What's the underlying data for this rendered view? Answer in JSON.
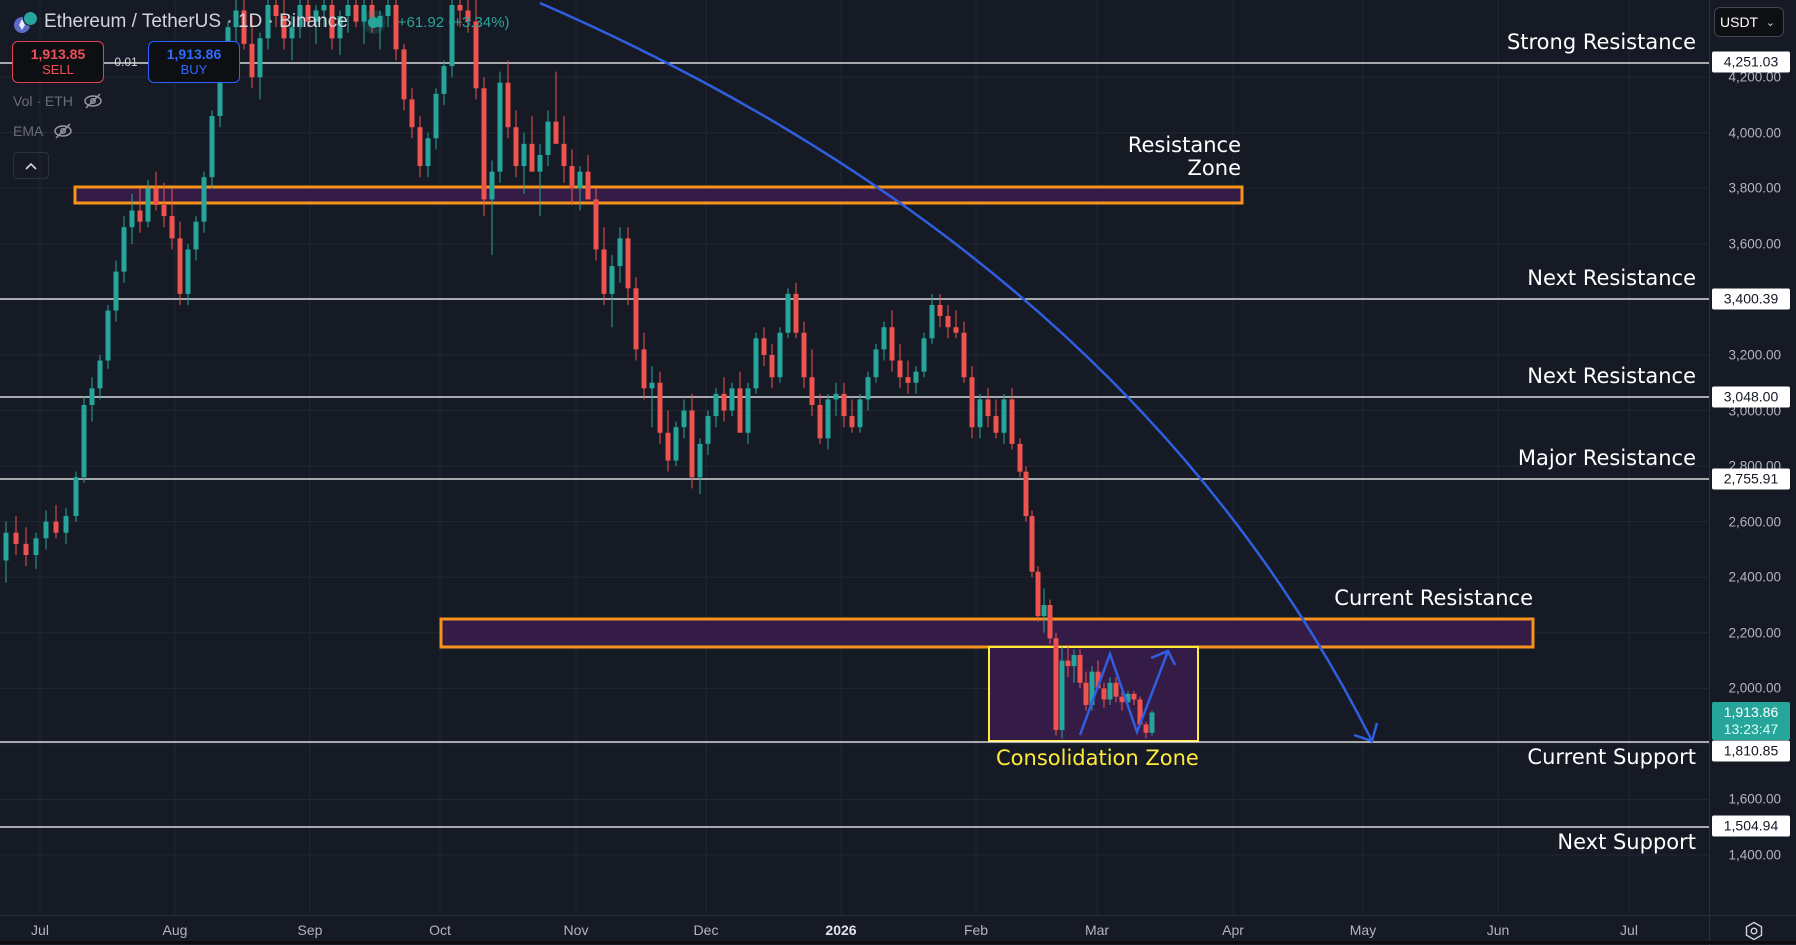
{
  "header": {
    "symbol_title": "Ethereum / TetherUS · 1D · Binance",
    "change": "+61.92 (+3.34%)",
    "sell_price": "1,913.85",
    "sell_label": "SELL",
    "spread": "0.01",
    "buy_price": "1,913.86",
    "buy_label": "BUY",
    "indicators": [
      {
        "label": "Vol · ETH",
        "visibility_icon": "eye-off-icon"
      },
      {
        "label": "EMA",
        "visibility_icon": "eye-off-icon"
      }
    ],
    "collapse_icon": "chevron-up-icon"
  },
  "price_axis": {
    "currency": "USDT",
    "ticks": [
      "4,200.00",
      "4,000.00",
      "3,800.00",
      "3,600.00",
      "3,200.00",
      "3,000.00",
      "2,800.00",
      "2,600.00",
      "2,400.00",
      "2,200.00",
      "2,000.00",
      "1,600.00",
      "1,400.00"
    ],
    "level_labels": [
      "4,251.03",
      "3,400.39",
      "3,048.00",
      "2,755.91",
      "1,810.85",
      "1,504.94"
    ],
    "last_price": "1,913.86",
    "countdown": "13:23:47"
  },
  "time_axis": {
    "labels": [
      "Jul",
      "Aug",
      "Sep",
      "Oct",
      "Nov",
      "Dec",
      "2026",
      "Feb",
      "Mar",
      "Apr",
      "May",
      "Jun",
      "Jul"
    ],
    "settings_icon": "gear-icon"
  },
  "annotations": {
    "strong_resistance": "Strong Resistance",
    "resistance_zone_line1": "Resistance",
    "resistance_zone_line2": "Zone",
    "next_resistance_1": "Next Resistance",
    "next_resistance_2": "Next Resistance",
    "major_resistance": "Major Resistance",
    "current_resistance": "Current Resistance",
    "consolidation_zone": "Consolidation Zone",
    "current_support": "Current Support",
    "next_support": "Next Support"
  },
  "colors": {
    "background": "#161a25",
    "up_candle": "#26a69a",
    "down_candle": "#ef5350",
    "zone_border": "#f7931a",
    "zone_fill": "#351c47",
    "consolidation_border": "#ffeb3b",
    "projection": "#2f5fe0",
    "level_line": "#ffffff"
  },
  "chart_data": {
    "type": "candlestick",
    "title": "Ethereum / TetherUS · 1D · Binance",
    "xlabel": "",
    "ylabel": "USDT",
    "ylim": [
      1240,
      4480
    ],
    "x_ticks": [
      "Jul",
      "Aug",
      "Sep",
      "Oct",
      "Nov",
      "Dec",
      "2026",
      "Feb",
      "Mar",
      "Apr",
      "May",
      "Jun",
      "Jul"
    ],
    "y_ticks": [
      1400,
      1600,
      1800,
      2000,
      2200,
      2400,
      2600,
      2800,
      3000,
      3200,
      3400,
      3600,
      3800,
      4000,
      4200
    ],
    "last_price": 1913.86,
    "horizontal_levels": [
      {
        "label": "Strong Resistance",
        "price": 4251.03
      },
      {
        "label": "Next Resistance",
        "price": 3400.39
      },
      {
        "label": "Next Resistance",
        "price": 3048.0
      },
      {
        "label": "Major Resistance",
        "price": 2755.91
      },
      {
        "label": "Current Support",
        "price": 1810.85
      },
      {
        "label": "Next Support",
        "price": 1504.94
      }
    ],
    "zones": [
      {
        "label": "Resistance Zone",
        "price_low": 3740,
        "price_high": 3800,
        "from": "Jul",
        "to": "Apr"
      },
      {
        "label": "Current Resistance",
        "price_low": 2150,
        "price_high": 2250,
        "from": "Oct",
        "to": "Jun"
      },
      {
        "label": "Consolidation Zone",
        "price_low": 1810,
        "price_high": 2150,
        "from": "Feb",
        "to": "Mar"
      }
    ],
    "projection": "Curved downtrend arrow from ~4,480 (Sep) to ~1,810 (May); zig-zag inside consolidation zone pointing up",
    "candles_xohlc": [
      [
        6,
        2460,
        2600,
        2380,
        2560
      ],
      [
        16,
        2560,
        2620,
        2480,
        2520
      ],
      [
        26,
        2520,
        2580,
        2440,
        2480
      ],
      [
        36,
        2480,
        2560,
        2430,
        2540
      ],
      [
        46,
        2540,
        2640,
        2500,
        2600
      ],
      [
        56,
        2600,
        2660,
        2540,
        2560
      ],
      [
        66,
        2560,
        2650,
        2520,
        2620
      ],
      [
        76,
        2620,
        2780,
        2600,
        2760
      ],
      [
        84,
        2760,
        3050,
        2740,
        3020
      ],
      [
        92,
        3020,
        3120,
        2960,
        3080
      ],
      [
        100,
        3080,
        3200,
        3040,
        3180
      ],
      [
        108,
        3180,
        3380,
        3150,
        3360
      ],
      [
        116,
        3360,
        3540,
        3320,
        3500
      ],
      [
        124,
        3500,
        3700,
        3460,
        3660
      ],
      [
        132,
        3660,
        3780,
        3600,
        3720
      ],
      [
        140,
        3720,
        3800,
        3640,
        3680
      ],
      [
        148,
        3680,
        3830,
        3660,
        3800
      ],
      [
        156,
        3800,
        3860,
        3720,
        3740
      ],
      [
        164,
        3740,
        3820,
        3660,
        3700
      ],
      [
        172,
        3700,
        3800,
        3580,
        3620
      ],
      [
        180,
        3620,
        3680,
        3380,
        3420
      ],
      [
        188,
        3420,
        3600,
        3380,
        3580
      ],
      [
        196,
        3580,
        3700,
        3540,
        3680
      ],
      [
        204,
        3680,
        3860,
        3640,
        3840
      ],
      [
        212,
        3840,
        4080,
        3800,
        4060
      ],
      [
        220,
        4060,
        4300,
        4020,
        4280
      ],
      [
        228,
        4280,
        4400,
        4200,
        4380
      ],
      [
        236,
        4380,
        4480,
        4300,
        4440
      ],
      [
        244,
        4440,
        4480,
        4300,
        4320
      ],
      [
        252,
        4320,
        4420,
        4160,
        4200
      ],
      [
        260,
        4200,
        4360,
        4120,
        4340
      ],
      [
        268,
        4340,
        4480,
        4300,
        4460
      ],
      [
        276,
        4460,
        4480,
        4380,
        4420
      ],
      [
        284,
        4420,
        4480,
        4300,
        4340
      ],
      [
        292,
        4340,
        4420,
        4260,
        4380
      ],
      [
        300,
        4380,
        4480,
        4340,
        4460
      ],
      [
        308,
        4460,
        4480,
        4380,
        4400
      ],
      [
        316,
        4400,
        4460,
        4320,
        4440
      ],
      [
        324,
        4440,
        4480,
        4380,
        4460
      ],
      [
        332,
        4460,
        4480,
        4300,
        4340
      ],
      [
        340,
        4340,
        4440,
        4280,
        4420
      ],
      [
        348,
        4420,
        4480,
        4360,
        4460
      ],
      [
        356,
        4460,
        4480,
        4380,
        4400
      ],
      [
        364,
        4400,
        4480,
        4320,
        4460
      ],
      [
        372,
        4460,
        4480,
        4360,
        4380
      ],
      [
        380,
        4380,
        4440,
        4300,
        4420
      ],
      [
        388,
        4420,
        4480,
        4380,
        4460
      ],
      [
        396,
        4460,
        4480,
        4260,
        4300
      ],
      [
        404,
        4300,
        4320,
        4080,
        4120
      ],
      [
        412,
        4120,
        4160,
        3980,
        4020
      ],
      [
        420,
        4020,
        4060,
        3840,
        3880
      ],
      [
        428,
        3880,
        4000,
        3840,
        3980
      ],
      [
        436,
        3980,
        4160,
        3940,
        4140
      ],
      [
        444,
        4140,
        4260,
        4100,
        4240
      ],
      [
        452,
        4240,
        4480,
        4200,
        4460
      ],
      [
        460,
        4460,
        4480,
        4380,
        4440
      ],
      [
        468,
        4440,
        4480,
        4360,
        4400
      ],
      [
        476,
        4400,
        4480,
        4120,
        4160
      ],
      [
        484,
        4160,
        4200,
        3700,
        3760
      ],
      [
        492,
        3760,
        3900,
        3560,
        3860
      ],
      [
        500,
        3860,
        4220,
        3820,
        4180
      ],
      [
        508,
        4180,
        4260,
        3980,
        4020
      ],
      [
        516,
        4020,
        4080,
        3840,
        3880
      ],
      [
        524,
        3880,
        4000,
        3780,
        3960
      ],
      [
        532,
        3960,
        4060,
        3900,
        3860
      ],
      [
        540,
        3860,
        3960,
        3700,
        3920
      ],
      [
        548,
        3920,
        4080,
        3880,
        4040
      ],
      [
        556,
        4040,
        4220,
        3980,
        3960
      ],
      [
        564,
        3960,
        4060,
        3820,
        3880
      ],
      [
        572,
        3880,
        3940,
        3740,
        3800
      ],
      [
        580,
        3800,
        3880,
        3720,
        3860
      ],
      [
        588,
        3860,
        3920,
        3820,
        3760
      ],
      [
        596,
        3760,
        3800,
        3540,
        3580
      ],
      [
        604,
        3580,
        3660,
        3380,
        3420
      ],
      [
        612,
        3420,
        3560,
        3300,
        3520
      ],
      [
        620,
        3520,
        3660,
        3460,
        3620
      ],
      [
        628,
        3620,
        3660,
        3380,
        3440
      ],
      [
        636,
        3440,
        3480,
        3180,
        3220
      ],
      [
        644,
        3220,
        3280,
        3040,
        3080
      ],
      [
        652,
        3080,
        3160,
        2940,
        3100
      ],
      [
        660,
        3100,
        3140,
        2880,
        2920
      ],
      [
        668,
        2920,
        3000,
        2780,
        2820
      ],
      [
        676,
        2820,
        2960,
        2800,
        2940
      ],
      [
        684,
        2940,
        3040,
        2900,
        3000
      ],
      [
        692,
        3000,
        3060,
        2720,
        2760
      ],
      [
        700,
        2760,
        2900,
        2700,
        2880
      ],
      [
        708,
        2880,
        3000,
        2840,
        2980
      ],
      [
        716,
        2980,
        3080,
        2940,
        3060
      ],
      [
        724,
        3060,
        3120,
        2960,
        3000
      ],
      [
        732,
        3000,
        3100,
        2980,
        3080
      ],
      [
        740,
        3080,
        3140,
        2980,
        2920
      ],
      [
        748,
        2920,
        3100,
        2880,
        3080
      ],
      [
        756,
        3080,
        3280,
        3060,
        3260
      ],
      [
        764,
        3260,
        3300,
        3160,
        3200
      ],
      [
        772,
        3200,
        3240,
        3080,
        3120
      ],
      [
        780,
        3120,
        3300,
        3100,
        3280
      ],
      [
        788,
        3280,
        3440,
        3260,
        3420
      ],
      [
        796,
        3420,
        3460,
        3260,
        3280
      ],
      [
        804,
        3280,
        3320,
        3080,
        3120
      ],
      [
        812,
        3120,
        3220,
        2980,
        3020
      ],
      [
        820,
        3020,
        3060,
        2880,
        2900
      ],
      [
        828,
        2900,
        3060,
        2860,
        3040
      ],
      [
        836,
        3040,
        3100,
        2980,
        3060
      ],
      [
        844,
        3060,
        3100,
        2940,
        2980
      ],
      [
        852,
        2980,
        3040,
        2920,
        2940
      ],
      [
        860,
        2940,
        3060,
        2920,
        3040
      ],
      [
        868,
        3040,
        3140,
        3000,
        3120
      ],
      [
        876,
        3120,
        3240,
        3100,
        3220
      ],
      [
        884,
        3220,
        3320,
        3180,
        3300
      ],
      [
        892,
        3300,
        3360,
        3140,
        3180
      ],
      [
        900,
        3180,
        3240,
        3080,
        3120
      ],
      [
        908,
        3120,
        3180,
        3060,
        3100
      ],
      [
        916,
        3100,
        3160,
        3060,
        3140
      ],
      [
        924,
        3140,
        3280,
        3120,
        3260
      ],
      [
        932,
        3260,
        3420,
        3240,
        3380
      ],
      [
        940,
        3380,
        3420,
        3300,
        3340
      ],
      [
        948,
        3340,
        3380,
        3260,
        3300
      ],
      [
        956,
        3300,
        3360,
        3260,
        3280
      ],
      [
        964,
        3280,
        3320,
        3100,
        3120
      ],
      [
        972,
        3120,
        3160,
        2900,
        2940
      ],
      [
        980,
        2940,
        3060,
        2900,
        3040
      ],
      [
        988,
        3040,
        3080,
        2940,
        2980
      ],
      [
        996,
        2980,
        3040,
        2900,
        2920
      ],
      [
        1004,
        2920,
        3060,
        2880,
        3040
      ],
      [
        1012,
        3040,
        3080,
        2860,
        2880
      ],
      [
        1020,
        2880,
        2900,
        2760,
        2780
      ],
      [
        1026,
        2780,
        2800,
        2600,
        2620
      ],
      [
        1032,
        2620,
        2640,
        2400,
        2420
      ],
      [
        1038,
        2420,
        2440,
        2240,
        2260
      ],
      [
        1044,
        2260,
        2360,
        2200,
        2300
      ],
      [
        1050,
        2300,
        2320,
        2160,
        2180
      ],
      [
        1056,
        2180,
        2200,
        1830,
        1850
      ],
      [
        1062,
        1850,
        2150,
        1820,
        2100
      ],
      [
        1068,
        2100,
        2150,
        2040,
        2080
      ],
      [
        1074,
        2080,
        2140,
        2020,
        2120
      ],
      [
        1080,
        2120,
        2140,
        2000,
        2020
      ],
      [
        1086,
        2020,
        2060,
        1920,
        1940
      ],
      [
        1092,
        1940,
        2080,
        1920,
        2060
      ],
      [
        1098,
        2060,
        2100,
        2000,
        2000
      ],
      [
        1104,
        2000,
        2020,
        1930,
        1960
      ],
      [
        1110,
        1960,
        2040,
        1940,
        2020
      ],
      [
        1116,
        2020,
        2040,
        1950,
        1970
      ],
      [
        1122,
        1970,
        2000,
        1920,
        1950
      ],
      [
        1128,
        1950,
        1990,
        1930,
        1980
      ],
      [
        1134,
        1980,
        1990,
        1940,
        1960
      ],
      [
        1140,
        1960,
        1970,
        1860,
        1870
      ],
      [
        1146,
        1870,
        1880,
        1820,
        1840
      ],
      [
        1152,
        1840,
        1920,
        1830,
        1913
      ]
    ]
  }
}
